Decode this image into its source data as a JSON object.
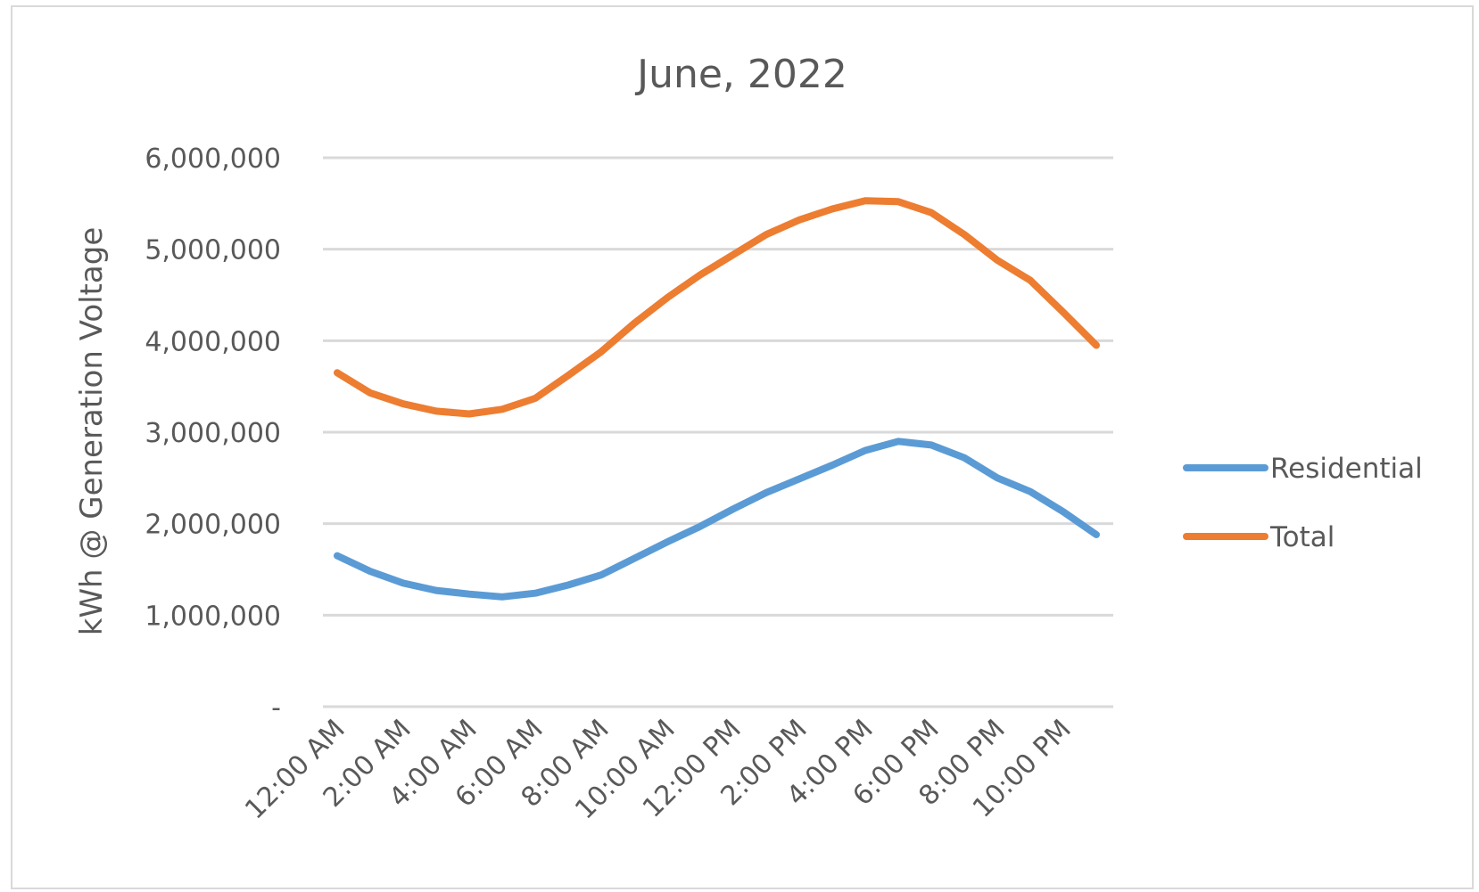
{
  "chart_data": {
    "type": "line",
    "title": "June, 2022",
    "xlabel": "",
    "ylabel": "kWh @ Generation Voltage",
    "ylim": [
      0,
      6000000
    ],
    "y_ticks": [
      {
        "value": 6000000,
        "label": "6,000,000"
      },
      {
        "value": 5000000,
        "label": "5,000,000"
      },
      {
        "value": 4000000,
        "label": "4,000,000"
      },
      {
        "value": 3000000,
        "label": "3,000,000"
      },
      {
        "value": 2000000,
        "label": "2,000,000"
      },
      {
        "value": 1000000,
        "label": "1,000,000"
      },
      {
        "value": 0,
        "label": "-"
      }
    ],
    "x": [
      "12:00 AM",
      "1:00 AM",
      "2:00 AM",
      "3:00 AM",
      "4:00 AM",
      "5:00 AM",
      "6:00 AM",
      "7:00 AM",
      "8:00 AM",
      "9:00 AM",
      "10:00 AM",
      "11:00 AM",
      "12:00 PM",
      "1:00 PM",
      "2:00 PM",
      "3:00 PM",
      "4:00 PM",
      "5:00 PM",
      "6:00 PM",
      "7:00 PM",
      "8:00 PM",
      "9:00 PM",
      "10:00 PM",
      "11:00 PM"
    ],
    "x_tick_labels": [
      "12:00 AM",
      "2:00 AM",
      "4:00 AM",
      "6:00 AM",
      "8:00 AM",
      "10:00 AM",
      "12:00 PM",
      "2:00 PM",
      "4:00 PM",
      "6:00 PM",
      "8:00 PM",
      "10:00 PM"
    ],
    "series": [
      {
        "name": "Residential",
        "color": "#5b9bd5",
        "values": [
          1650000,
          1480000,
          1350000,
          1270000,
          1230000,
          1200000,
          1240000,
          1330000,
          1440000,
          1620000,
          1800000,
          1970000,
          2160000,
          2340000,
          2490000,
          2640000,
          2800000,
          2900000,
          2860000,
          2720000,
          2500000,
          2350000,
          2130000,
          1880000
        ]
      },
      {
        "name": "Total",
        "color": "#ed7d31",
        "values": [
          3650000,
          3430000,
          3310000,
          3230000,
          3200000,
          3250000,
          3370000,
          3620000,
          3880000,
          4190000,
          4470000,
          4720000,
          4940000,
          5160000,
          5320000,
          5440000,
          5530000,
          5520000,
          5400000,
          5160000,
          4880000,
          4660000,
          4310000,
          3950000
        ]
      }
    ],
    "legend_position": "right",
    "grid": true
  }
}
